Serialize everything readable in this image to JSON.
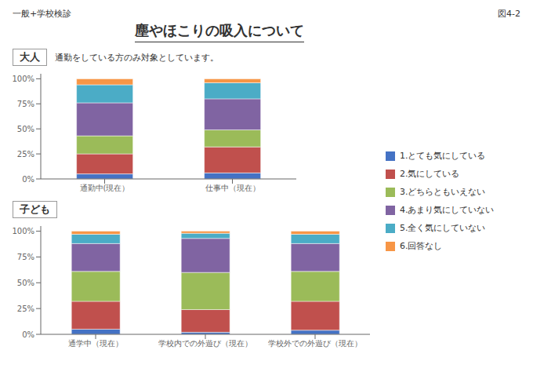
{
  "title": "塵やほこりの吸入について",
  "subtitle": "一般+学校検診",
  "annotations": [
    "図4-2"
  ],
  "chart_data": [
    {
      "type": "bar",
      "title": "大人",
      "annotations": [
        "通勤をしている方のみ対象としています。"
      ],
      "stacked": true,
      "grid": false,
      "legend": "right",
      "categories": [
        "通勤中(現在）",
        "仕事中（現在）"
      ],
      "series": [
        {
          "name": "1.とても気にしている",
          "color": "#4472C4",
          "values": [
            0.05,
            0.06
          ]
        },
        {
          "name": "2.気にしている",
          "color": "#C0504D",
          "values": [
            0.2,
            0.26
          ]
        },
        {
          "name": "3.どちらともいえない",
          "color": "#9BBB59",
          "values": [
            0.18,
            0.17
          ]
        },
        {
          "name": "4.あまり気にしていない",
          "color": "#8064A2",
          "values": [
            0.33,
            0.31
          ]
        },
        {
          "name": "5.全く気にしていない",
          "color": "#4BACC6",
          "values": [
            0.18,
            0.16
          ]
        },
        {
          "name": "6.回答なし",
          "color": "#F79646",
          "values": [
            0.06,
            0.04
          ]
        }
      ],
      "ylim": [
        0,
        1.05
      ],
      "yticks": [
        {
          "value": 0,
          "label": "0%"
        },
        {
          "value": 0.25,
          "label": "25%"
        },
        {
          "value": 0.5,
          "label": "50%"
        },
        {
          "value": 0.75,
          "label": "75%"
        },
        {
          "value": 1.0,
          "label": "100%"
        }
      ]
    },
    {
      "type": "bar",
      "title": "子ども",
      "stacked": true,
      "grid": false,
      "legend": "right",
      "categories": [
        "通学中（現在）",
        "学校内での外遊び（現在）",
        "学校外での外遊び（現在）"
      ],
      "series": [
        {
          "name": "1.とても気にしている",
          "color": "#4472C4",
          "values": [
            0.05,
            0.02,
            0.04
          ]
        },
        {
          "name": "2.気にしている",
          "color": "#C0504D",
          "values": [
            0.27,
            0.22,
            0.28
          ]
        },
        {
          "name": "3.どちらともいえない",
          "color": "#9BBB59",
          "values": [
            0.29,
            0.36,
            0.29
          ]
        },
        {
          "name": "4.あまり気にしていない",
          "color": "#8064A2",
          "values": [
            0.27,
            0.33,
            0.27
          ]
        },
        {
          "name": "5.全く気にしていない",
          "color": "#4BACC6",
          "values": [
            0.09,
            0.05,
            0.09
          ]
        },
        {
          "name": "6.回答なし",
          "color": "#F79646",
          "values": [
            0.03,
            0.02,
            0.03
          ]
        }
      ],
      "ylim": [
        0,
        1.05
      ],
      "yticks": [
        {
          "value": 0,
          "label": "0%"
        },
        {
          "value": 0.25,
          "label": "25%"
        },
        {
          "value": 0.5,
          "label": "50%"
        },
        {
          "value": 0.75,
          "label": "75%"
        },
        {
          "value": 1.0,
          "label": "100%"
        }
      ]
    }
  ]
}
